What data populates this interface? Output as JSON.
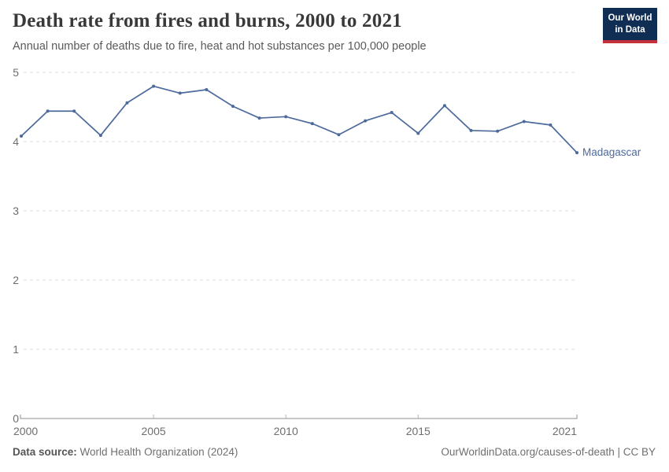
{
  "header": {
    "title": "Death rate from fires and burns, 2000 to 2021",
    "subtitle": "Annual number of deaths due to fire, heat and hot substances per 100,000 people",
    "logo": {
      "line1": "Our World",
      "line2": "in Data"
    }
  },
  "chart_data": {
    "type": "line",
    "x": [
      2000,
      2001,
      2002,
      2003,
      2004,
      2005,
      2006,
      2007,
      2008,
      2009,
      2010,
      2011,
      2012,
      2013,
      2014,
      2015,
      2016,
      2017,
      2018,
      2019,
      2020,
      2021
    ],
    "series": [
      {
        "name": "Madagascar",
        "values": [
          4.08,
          4.44,
          4.44,
          4.09,
          4.56,
          4.8,
          4.7,
          4.75,
          4.51,
          4.34,
          4.36,
          4.26,
          4.1,
          4.3,
          4.42,
          4.12,
          4.52,
          4.16,
          4.15,
          4.29,
          4.24,
          3.84
        ]
      }
    ],
    "title": "Death rate from fires and burns, 2000 to 2021",
    "subtitle": "Annual number of deaths due to fire, heat and hot substances per 100,000 people",
    "xlabel": "",
    "ylabel": "",
    "xlim": [
      2000,
      2021
    ],
    "ylim": [
      0,
      5
    ],
    "x_ticks": [
      2000,
      2005,
      2010,
      2015,
      2021
    ],
    "y_ticks": [
      0,
      1,
      2,
      3,
      4,
      5
    ],
    "grid": "horizontal-dashed",
    "legend_position": "end-of-line-label",
    "end_label": "Madagascar"
  },
  "footer": {
    "datasource_label": "Data source:",
    "datasource_value": " World Health Organization (2024)",
    "credit": "OurWorldinData.org/causes-of-death | CC BY"
  },
  "colors": {
    "line": "#4C6A9C",
    "gridline": "#DEDEDE",
    "axis": "#8F8F8F",
    "tick": "#B3B3B3",
    "tick_label": "#6E6E6E",
    "title": "#393939",
    "subtitle": "#5A5A5A",
    "footer": "#6F6F6F",
    "footer_strong": "#555555",
    "logo_bg": "#102D54",
    "logo_accent": "#C5303E"
  }
}
